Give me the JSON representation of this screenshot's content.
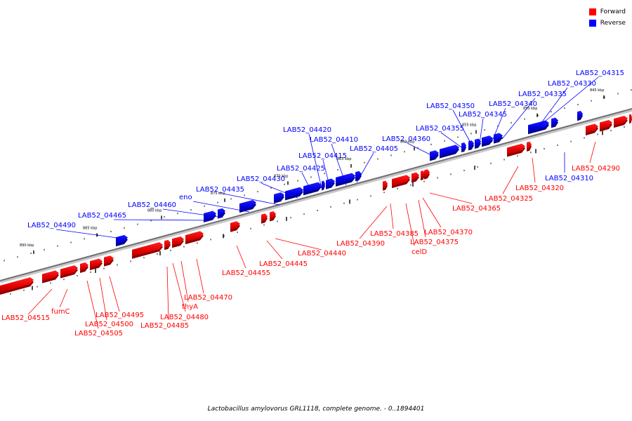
{
  "legend": {
    "forward": {
      "label": "Forward",
      "color": "#ff0000"
    },
    "reverse": {
      "label": "Reverse",
      "color": "#0000ff"
    }
  },
  "caption": "Lactobacillus amylovorus GRL1118, complete genome. - 0..1894401",
  "ticks": [
    "845 kbp",
    "850 kbp",
    "855 kbp",
    "860 kbp",
    "865 kbp",
    "870 kbp",
    "875 kbp",
    "880 kbp",
    "885 kbp",
    "890 kbp"
  ],
  "reverse_labels": [
    "LAB52_04315",
    "LAB52_04330",
    "LAB52_04335",
    "LAB52_04340",
    "LAB52_04345",
    "LAB52_04350",
    "LAB52_04355",
    "LAB52_04360",
    "LAB52_04405",
    "LAB52_04410",
    "LAB52_04415",
    "LAB52_04420",
    "LAB52_04425",
    "LAB52_04430",
    "LAB52_04435",
    "eno",
    "LAB52_04460",
    "LAB52_04465",
    "LAB52_04490",
    "LAB52_04310"
  ],
  "forward_labels": [
    "LAB52_04290",
    "LAB52_04320",
    "LAB52_04325",
    "LAB52_04365",
    "LAB52_04370",
    "LAB52_04375",
    "celD",
    "LAB52_04385",
    "LAB52_04390",
    "LAB52_04440",
    "LAB52_04445",
    "LAB52_04455",
    "LAB52_04470",
    "thyA",
    "LAB52_04480",
    "LAB52_04485",
    "LAB52_04495",
    "LAB52_04500",
    "LAB52_04505",
    "fumC",
    "LAB52_04515"
  ]
}
